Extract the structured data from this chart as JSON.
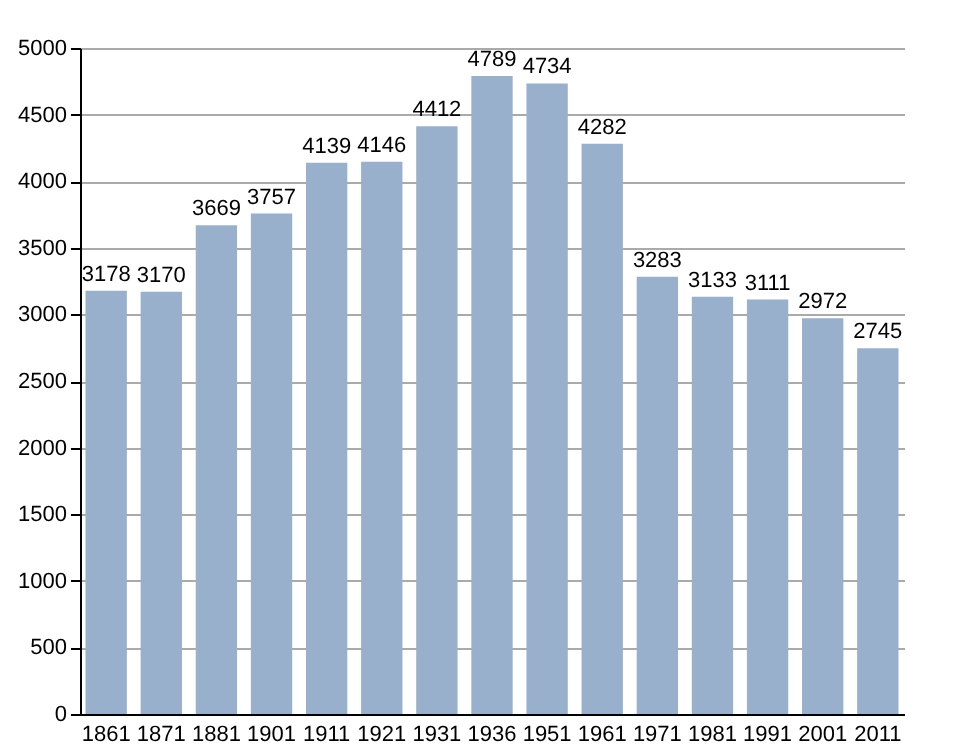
{
  "chart_data": {
    "type": "bar",
    "categories": [
      "1861",
      "1871",
      "1881",
      "1901",
      "1911",
      "1921",
      "1931",
      "1936",
      "1951",
      "1961",
      "1971",
      "1981",
      "1991",
      "2001",
      "2011"
    ],
    "values": [
      3178,
      3170,
      3669,
      3757,
      4139,
      4146,
      4412,
      4789,
      4734,
      4282,
      3283,
      3133,
      3111,
      2972,
      2745
    ],
    "color": "#98b0cc",
    "ylim": [
      0,
      5000
    ],
    "yticks": [
      0,
      500,
      1000,
      1500,
      2000,
      2500,
      3000,
      3500,
      4000,
      4500,
      5000
    ],
    "grid": "y",
    "data_labels": true
  }
}
